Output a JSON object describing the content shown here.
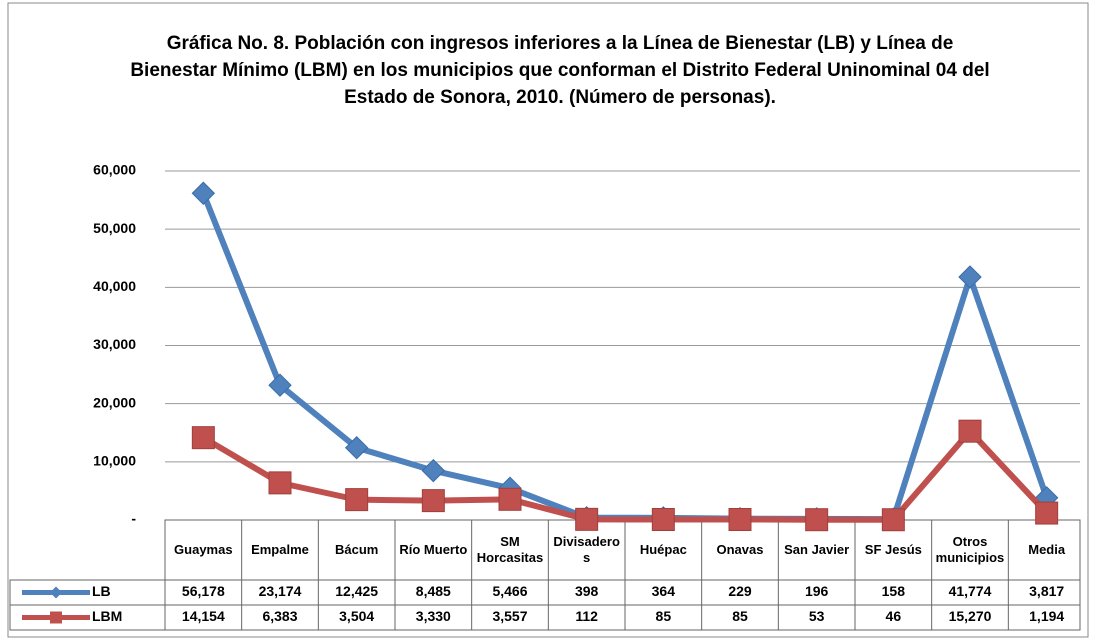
{
  "chart_data": {
    "type": "line",
    "title": "Gráfica No. 8. Población con ingresos inferiores a la Línea de Bienestar (LB) y Línea de Bienestar Mínimo (LBM) en los municipios que conforman el Distrito Federal Uninominal 04 del Estado de Sonora, 2010. (Número de personas).",
    "categories": [
      "Guaymas",
      "Empalme",
      "Bácum",
      "Río Muerto",
      "SM Horcasitas",
      "Divisaderos",
      "Huépac",
      "Onavas",
      "San Javier",
      "SF Jesús",
      "Otros municipios",
      "Media"
    ],
    "series": [
      {
        "name": "LB",
        "color": "#4f81bd",
        "values": [
          56178,
          23174,
          12425,
          8485,
          5466,
          398,
          364,
          229,
          196,
          158,
          41774,
          3817
        ],
        "value_labels": [
          "56,178",
          "23,174",
          "12,425",
          "8,485",
          "5,466",
          "398",
          "364",
          "229",
          "196",
          "158",
          "41,774",
          "3,817"
        ]
      },
      {
        "name": "LBM",
        "color": "#c0504d",
        "values": [
          14154,
          6383,
          3504,
          3330,
          3557,
          112,
          85,
          85,
          53,
          46,
          15270,
          1194
        ],
        "value_labels": [
          "14,154",
          "6,383",
          "3,504",
          "3,330",
          "3,557",
          "112",
          "85",
          "85",
          "53",
          "46",
          "15,270",
          "1,194"
        ]
      }
    ],
    "ylim": [
      0,
      60000
    ],
    "yticks": [
      {
        "value": 0,
        "label": "-"
      },
      {
        "value": 10000,
        "label": "10,000"
      },
      {
        "value": 20000,
        "label": "20,000"
      },
      {
        "value": 30000,
        "label": "30,000"
      },
      {
        "value": 40000,
        "label": "40,000"
      },
      {
        "value": 50000,
        "label": "50,000"
      },
      {
        "value": 60000,
        "label": "60,000"
      }
    ],
    "grid": true
  }
}
